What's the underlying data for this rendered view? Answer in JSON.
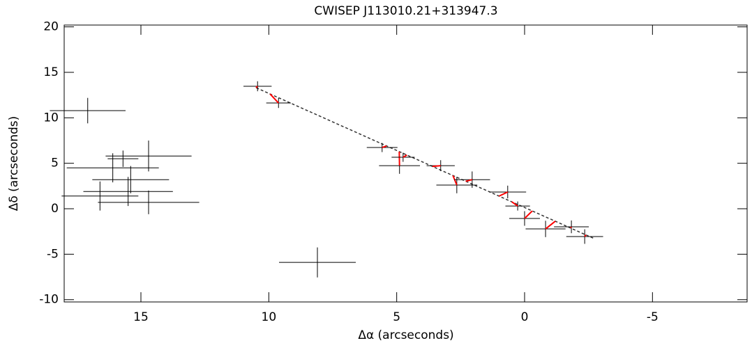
{
  "chart_data": {
    "type": "scatter",
    "title": "CWISEP J113010.21+313947.3",
    "xlabel": "Δα (arcseconds)",
    "ylabel": "Δδ (arcseconds)",
    "xlim": [
      18,
      -8.7
    ],
    "ylim": [
      -10.25,
      20.2
    ],
    "xticks": [
      15,
      10,
      5,
      0,
      -5
    ],
    "yticks": [
      -10,
      -5,
      0,
      5,
      10,
      15,
      20
    ],
    "field_stars": {
      "color": "#000000",
      "x": [
        17.08,
        16.1,
        14.7,
        15.7,
        15.5,
        16.6,
        14.7,
        15.4,
        8.1
      ],
      "y": [
        10.79,
        4.5,
        5.8,
        5.5,
        1.9,
        1.4,
        0.7,
        3.2,
        -5.9
      ],
      "xerr": [
        1.48,
        1.8,
        1.68,
        0.6,
        1.75,
        1.5,
        1.98,
        1.5,
        1.5
      ],
      "yerr": [
        1.4,
        1.6,
        1.7,
        0.9,
        1.6,
        1.6,
        1.3,
        1.5,
        1.65
      ]
    },
    "target": {
      "color": "#000000",
      "x": [
        10.44,
        9.62,
        5.57,
        4.89,
        4.75,
        3.28,
        2.65,
        2.05,
        0.66,
        0.27,
        0.0,
        -0.82,
        -1.83,
        -2.35
      ],
      "y": [
        13.47,
        11.63,
        6.73,
        4.74,
        5.66,
        4.74,
        2.6,
        3.2,
        1.84,
        0.3,
        -1.07,
        -2.22,
        -1.99,
        -3.06
      ],
      "xerr": [
        0.55,
        0.48,
        0.6,
        0.8,
        0.45,
        0.55,
        0.8,
        0.7,
        0.72,
        0.48,
        0.6,
        0.78,
        0.68,
        0.72
      ],
      "yerr": [
        0.55,
        0.55,
        0.5,
        0.9,
        0.5,
        0.6,
        0.9,
        0.9,
        0.7,
        0.5,
        0.8,
        0.9,
        0.7,
        0.8
      ]
    },
    "model": {
      "color": "#ff0000",
      "x": [
        10.5,
        9.95,
        5.4,
        4.9,
        4.6,
        3.6,
        2.8,
        2.3,
        1.0,
        0.5,
        -0.3,
        -1.2,
        -1.8,
        -2.4
      ],
      "y": [
        13.3,
        12.62,
        6.9,
        6.28,
        5.91,
        4.65,
        3.65,
        3.02,
        1.39,
        0.76,
        -0.24,
        -1.37,
        -2.12,
        -2.88
      ]
    },
    "fit": {
      "color": "#333333",
      "x": [
        10.49,
        -2.68
      ],
      "y": [
        13.3,
        -3.23
      ]
    }
  }
}
